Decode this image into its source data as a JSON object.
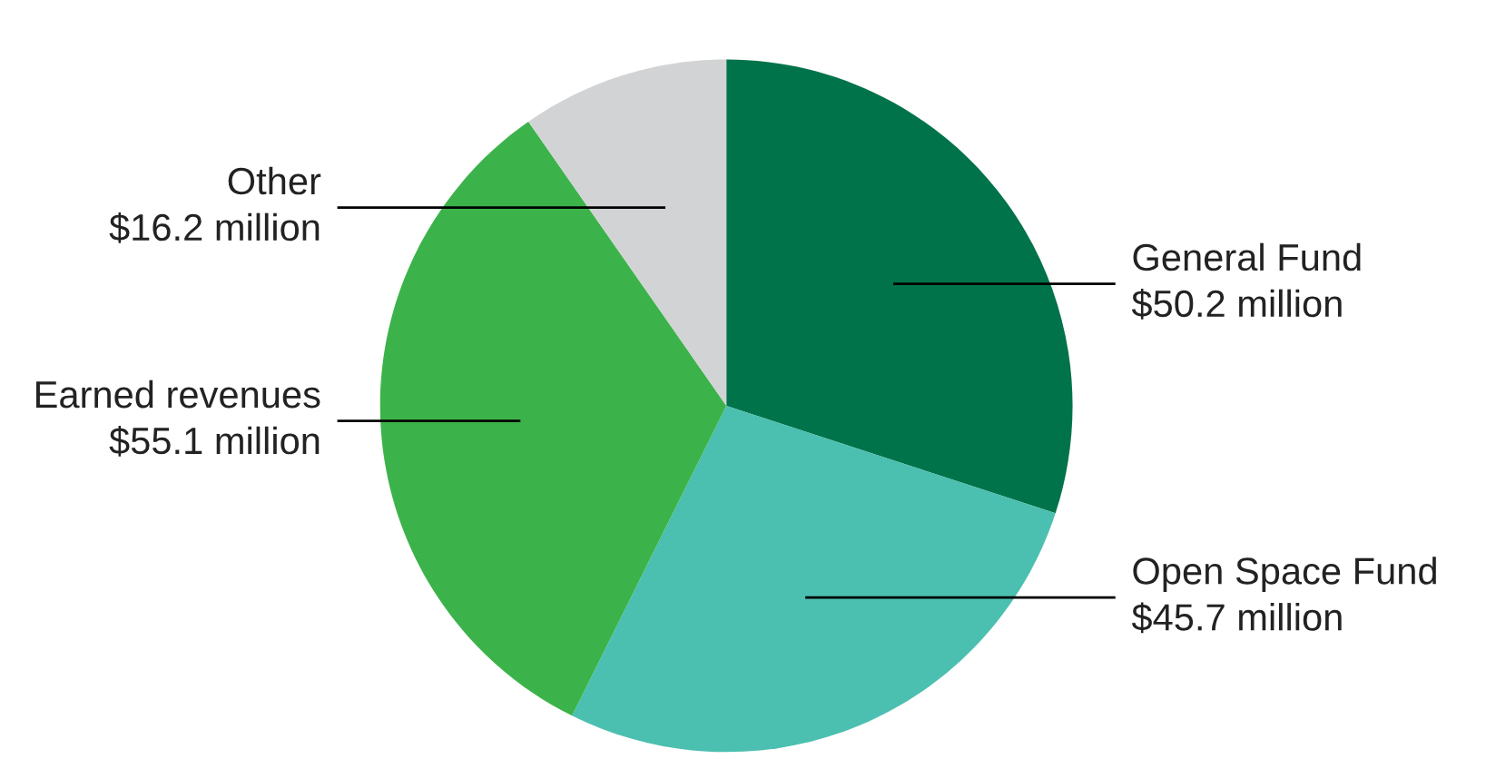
{
  "chart_data": {
    "type": "pie",
    "categories": [
      "General Fund",
      "Open Space Fund",
      "Earned revenues",
      "Other"
    ],
    "values": [
      50.2,
      45.7,
      55.1,
      16.2
    ],
    "colors": [
      "#00734a",
      "#4bbfb0",
      "#3bb34a",
      "#d1d3d4"
    ],
    "value_labels": [
      "$50.2 million",
      "$45.7 million",
      "$55.1 million",
      "$16.2 million"
    ]
  }
}
